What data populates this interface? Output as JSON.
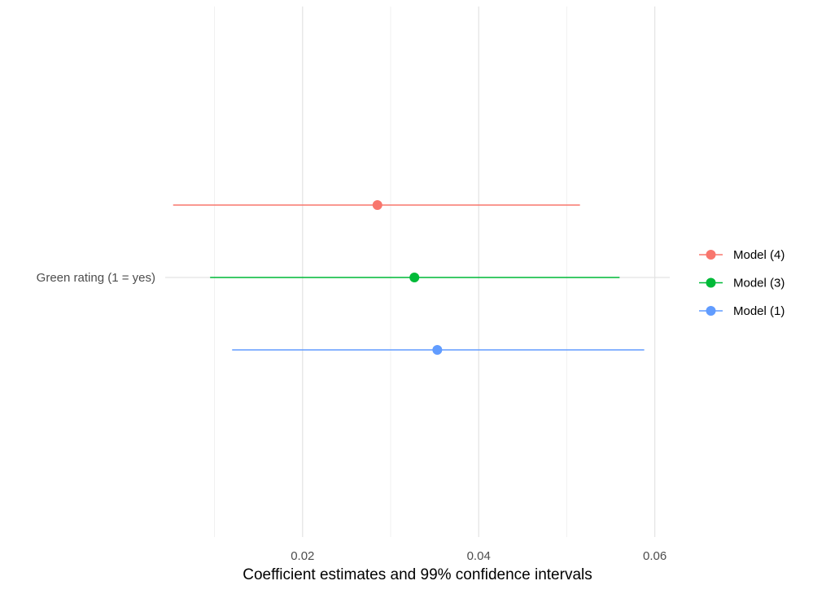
{
  "chart_data": {
    "type": "scatter",
    "subtype": "coefficient-plot",
    "title": "",
    "xlabel": "Coefficient estimates and 99% confidence intervals",
    "ylabel": "",
    "xlim": [
      0.0044,
      0.0617
    ],
    "x_ticks": [
      {
        "value": 0.02,
        "label": "0.02"
      },
      {
        "value": 0.04,
        "label": "0.04"
      },
      {
        "value": 0.06,
        "label": "0.06"
      }
    ],
    "x_minor_ticks": [
      0.01,
      0.03,
      0.05
    ],
    "categories": [
      "Green rating (1 = yes)"
    ],
    "grid": true,
    "legend_position": "right",
    "series": [
      {
        "name": "Model (1)",
        "color": "#619CFF",
        "estimate": 0.0353,
        "ci_low": 0.012,
        "ci_high": 0.0588
      },
      {
        "name": "Model (3)",
        "color": "#00BA38",
        "estimate": 0.0327,
        "ci_low": 0.0095,
        "ci_high": 0.056
      },
      {
        "name": "Model (4)",
        "color": "#F8766D",
        "estimate": 0.0285,
        "ci_low": 0.0053,
        "ci_high": 0.0515
      }
    ],
    "legend_order": [
      "Model (4)",
      "Model (3)",
      "Model (1)"
    ]
  }
}
